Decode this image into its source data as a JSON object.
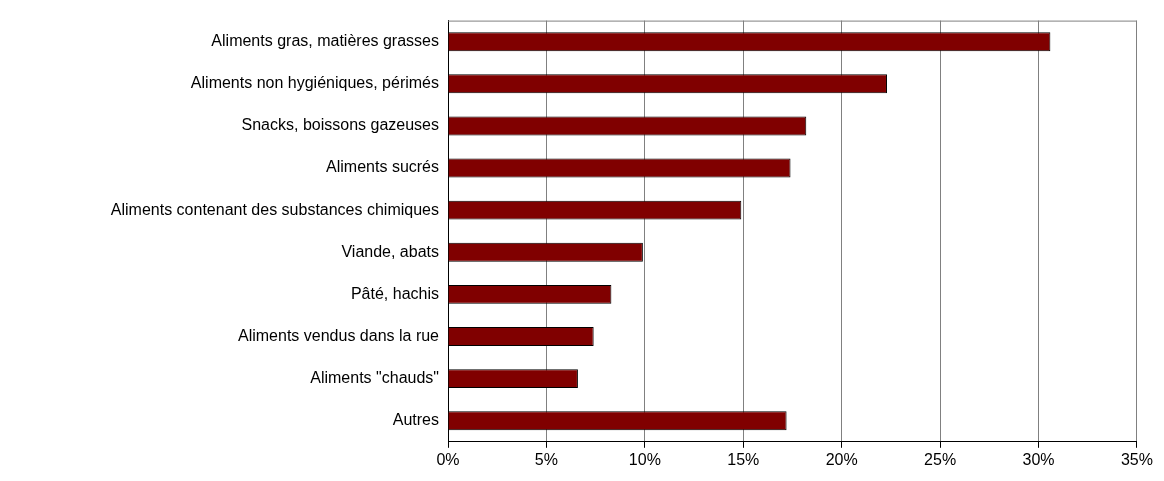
{
  "chart_data": {
    "type": "bar",
    "orientation": "horizontal",
    "categories": [
      "Aliments gras, matières grasses",
      "Aliments non hygiéniques, périmés",
      "Snacks, boissons gazeuses",
      "Aliments sucrés",
      "Aliments contenant des substances chimiques",
      "Viande, abats",
      "Pâté, hachis",
      "Aliments vendus dans la rue",
      "Aliments \"chauds\"",
      "Autres"
    ],
    "values": [
      30.6,
      22.3,
      18.2,
      17.4,
      14.9,
      9.9,
      8.3,
      7.4,
      6.6,
      17.2
    ],
    "color": "#800000",
    "xlim": [
      0,
      35
    ],
    "xticks": [
      {
        "value": 0,
        "label": "0%"
      },
      {
        "value": 5,
        "label": "5%"
      },
      {
        "value": 10,
        "label": "10%"
      },
      {
        "value": 15,
        "label": "15%"
      },
      {
        "value": 20,
        "label": "20%"
      },
      {
        "value": 25,
        "label": "25%"
      },
      {
        "value": 30,
        "label": "30%"
      },
      {
        "value": 35,
        "label": "35%"
      }
    ],
    "grid": "x",
    "legend": false
  }
}
